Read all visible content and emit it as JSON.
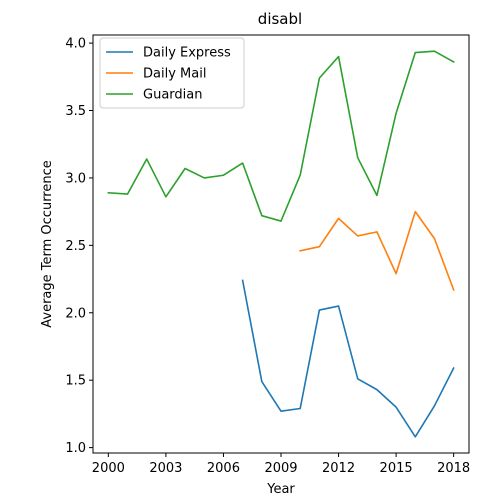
{
  "chart_data": {
    "type": "line",
    "title": "disabl",
    "xlabel": "Year",
    "ylabel": "Average Term Occurrence",
    "xlim": [
      1999.2,
      2018.8
    ],
    "ylim": [
      0.96,
      4.06
    ],
    "xticks": [
      2000,
      2003,
      2006,
      2009,
      2012,
      2015,
      2018
    ],
    "xtick_labels": [
      "2000",
      "2003",
      "2006",
      "2009",
      "2012",
      "2015",
      "2018"
    ],
    "yticks": [
      1.0,
      1.5,
      2.0,
      2.5,
      3.0,
      3.5,
      4.0
    ],
    "ytick_labels": [
      "1.0",
      "1.5",
      "2.0",
      "2.5",
      "3.0",
      "3.5",
      "4.0"
    ],
    "grid": false,
    "legend_position": "top-left",
    "series": [
      {
        "name": "Daily Express",
        "color": "#1f77b4",
        "x": [
          2007,
          2008,
          2009,
          2010,
          2011,
          2012,
          2013,
          2014,
          2015,
          2016,
          2017,
          2018
        ],
        "y": [
          2.24,
          1.49,
          1.27,
          1.29,
          2.02,
          2.05,
          1.51,
          1.43,
          1.3,
          1.08,
          1.31,
          1.59
        ]
      },
      {
        "name": "Daily Mail",
        "color": "#ff7f0e",
        "x": [
          2010,
          2011,
          2012,
          2013,
          2014,
          2015,
          2016,
          2017,
          2018
        ],
        "y": [
          2.46,
          2.49,
          2.7,
          2.57,
          2.6,
          2.29,
          2.75,
          2.55,
          2.17
        ]
      },
      {
        "name": "Guardian",
        "color": "#2ca02c",
        "x": [
          2000,
          2001,
          2002,
          2003,
          2004,
          2005,
          2006,
          2007,
          2008,
          2009,
          2010,
          2011,
          2012,
          2013,
          2014,
          2015,
          2016,
          2017,
          2018
        ],
        "y": [
          2.89,
          2.88,
          3.14,
          2.86,
          3.07,
          3.0,
          3.02,
          3.11,
          2.72,
          2.68,
          3.02,
          3.74,
          3.9,
          3.15,
          2.87,
          3.48,
          3.93,
          3.94,
          3.86
        ]
      }
    ]
  }
}
